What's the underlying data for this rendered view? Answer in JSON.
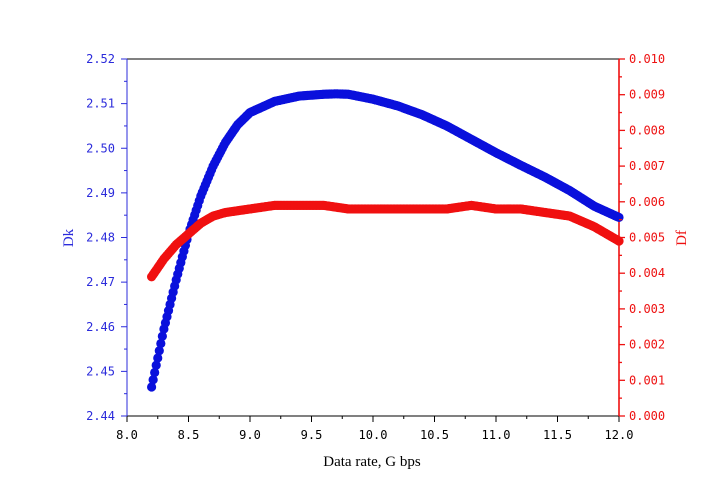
{
  "chart_data": {
    "type": "scatter",
    "xlabel": "Data rate, G bps",
    "xlim": [
      8.0,
      12.0
    ],
    "x_ticks": [
      "8.0",
      "8.5",
      "9.0",
      "9.5",
      "10.0",
      "10.5",
      "11.0",
      "11.5",
      "12.0"
    ],
    "y_left": {
      "label": "Dk",
      "range": [
        2.44,
        2.52
      ],
      "ticks": [
        "2.44",
        "2.45",
        "2.46",
        "2.47",
        "2.48",
        "2.49",
        "2.50",
        "2.51",
        "2.52"
      ],
      "color": "#2b2bdb"
    },
    "y_right": {
      "label": "Df",
      "range": [
        0.0,
        0.01
      ],
      "ticks": [
        "0.000",
        "0.001",
        "0.002",
        "0.003",
        "0.004",
        "0.005",
        "0.006",
        "0.007",
        "0.008",
        "0.009",
        "0.010"
      ],
      "color": "#ee1111"
    },
    "series": [
      {
        "axis": "left",
        "color": "#0a10dc",
        "x": [
          8.2,
          8.3,
          8.4,
          8.5,
          8.6,
          8.7,
          8.8,
          8.9,
          9.0,
          9.2,
          9.4,
          9.6,
          9.7,
          9.8,
          10.0,
          10.2,
          10.4,
          10.6,
          10.8,
          11.0,
          11.2,
          11.4,
          11.6,
          11.8,
          12.0
        ],
        "y": [
          2.4465,
          2.4595,
          2.4705,
          2.4808,
          2.4893,
          2.496,
          2.5013,
          2.5053,
          2.508,
          2.5105,
          2.5117,
          2.5121,
          2.5122,
          2.5121,
          2.511,
          2.5095,
          2.5075,
          2.505,
          2.502,
          2.499,
          2.4962,
          2.4935,
          2.4905,
          2.487,
          2.4845
        ]
      },
      {
        "axis": "right",
        "color": "#f01010",
        "x": [
          8.2,
          8.3,
          8.4,
          8.5,
          8.6,
          8.7,
          8.8,
          9.0,
          9.2,
          9.4,
          9.6,
          9.8,
          10.0,
          10.2,
          10.4,
          10.6,
          10.8,
          11.0,
          11.2,
          11.4,
          11.6,
          11.8,
          12.0
        ],
        "y": [
          0.0039,
          0.0044,
          0.0048,
          0.0051,
          0.0054,
          0.0056,
          0.0057,
          0.0058,
          0.0059,
          0.0059,
          0.0059,
          0.0058,
          0.0058,
          0.0058,
          0.0058,
          0.0058,
          0.0059,
          0.0058,
          0.0058,
          0.0057,
          0.0056,
          0.0053,
          0.0049
        ]
      }
    ]
  }
}
